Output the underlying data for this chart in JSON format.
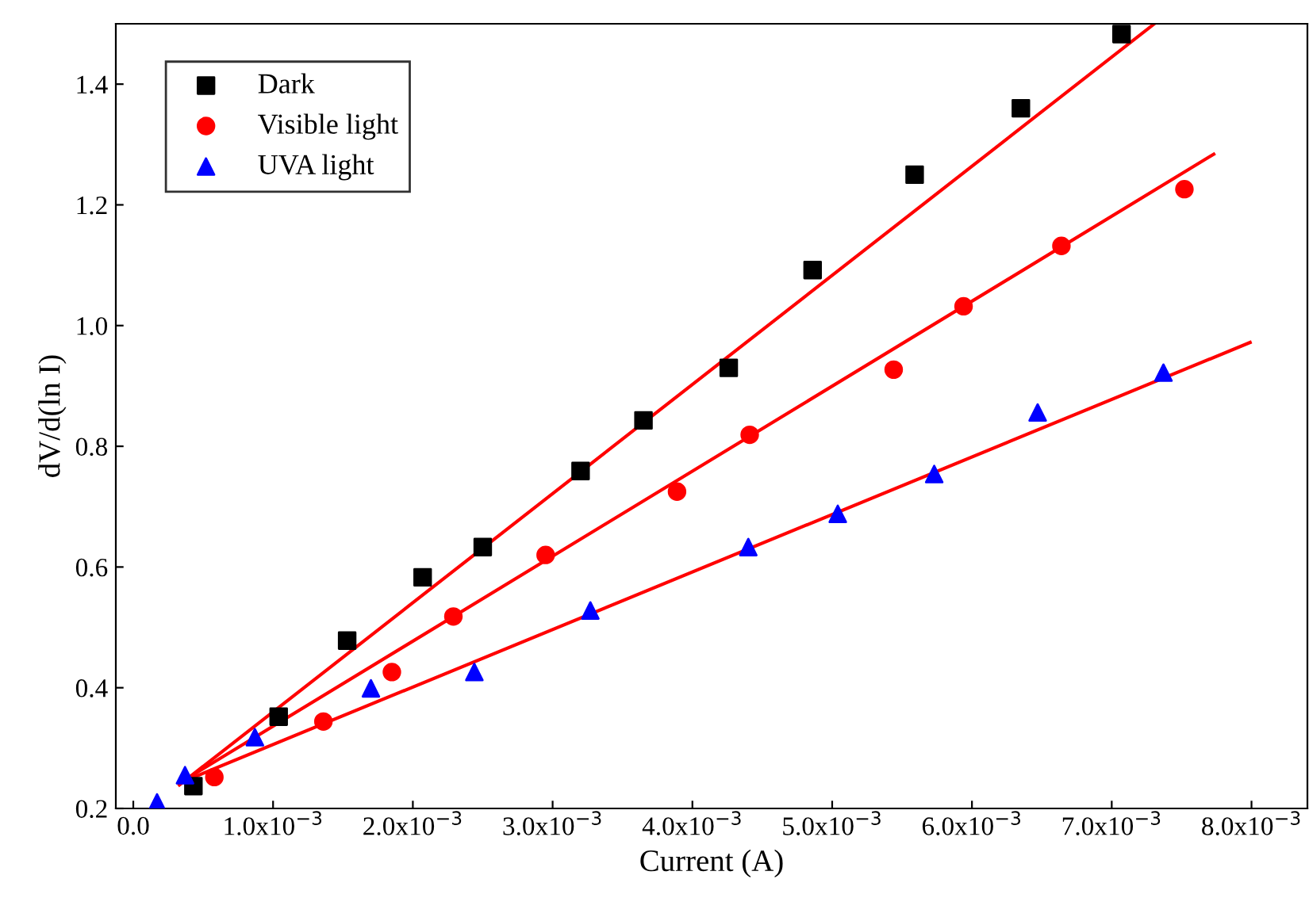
{
  "chart_data": {
    "type": "scatter",
    "xlabel": "Current (A)",
    "ylabel": "dV/d(ln I)",
    "xlim": [
      -0.000125,
      0.0084
    ],
    "ylim": [
      0.2,
      1.5
    ],
    "xticks": [
      {
        "value": 0,
        "label": "0.0"
      },
      {
        "value": 0.001,
        "label": "1.0x10$^{−3}$"
      },
      {
        "value": 0.002,
        "label": "2.0x10$^{−3}$"
      },
      {
        "value": 0.003,
        "label": "3.0x10$^{−3}$"
      },
      {
        "value": 0.004,
        "label": "4.0x10$^{−3}$"
      },
      {
        "value": 0.005,
        "label": "5.0x10$^{−3}$"
      },
      {
        "value": 0.006,
        "label": "6.0x10$^{−3}$"
      },
      {
        "value": 0.007,
        "label": "7.0x10$^{−3}$"
      },
      {
        "value": 0.008,
        "label": "8.0x10$^{−3}$"
      }
    ],
    "yticks": [
      {
        "value": 0.2,
        "label": "0.2"
      },
      {
        "value": 0.4,
        "label": "0.4"
      },
      {
        "value": 0.6,
        "label": "0.6"
      },
      {
        "value": 0.8,
        "label": "0.8"
      },
      {
        "value": 1.0,
        "label": "1.0"
      },
      {
        "value": 1.2,
        "label": "1.2"
      },
      {
        "value": 1.4,
        "label": "1.4"
      }
    ],
    "grid": false,
    "legend": "top left",
    "series": [
      {
        "name": "Dark",
        "marker": "square",
        "color": "#000000",
        "x": [
          0.00043,
          0.00104,
          0.00153,
          0.00207,
          0.0025,
          0.0032,
          0.00365,
          0.00426,
          0.00486,
          0.00559,
          0.00635,
          0.00707
        ],
        "values": [
          0.237,
          0.352,
          0.478,
          0.583,
          0.633,
          0.759,
          0.843,
          0.93,
          1.092,
          1.25,
          1.36,
          1.483
        ]
      },
      {
        "name": "Visible light",
        "marker": "circle",
        "color": "#ff0000",
        "x": [
          0.00058,
          0.00136,
          0.00185,
          0.00229,
          0.00295,
          0.00389,
          0.00441,
          0.00544,
          0.00594,
          0.00664,
          0.00752
        ],
        "values": [
          0.252,
          0.344,
          0.426,
          0.518,
          0.62,
          0.725,
          0.819,
          0.927,
          1.032,
          1.132,
          1.226
        ]
      },
      {
        "name": "UVA light",
        "marker": "triangle",
        "color": "#0000ff",
        "x": [
          0.00017,
          0.00037,
          0.00087,
          0.0017,
          0.00244,
          0.00327,
          0.0044,
          0.00504,
          0.00573,
          0.00647,
          0.00737
        ],
        "values": [
          0.21,
          0.255,
          0.318,
          0.399,
          0.426,
          0.528,
          0.633,
          0.688,
          0.754,
          0.856,
          0.922
        ]
      },
      {
        "type": "line",
        "color": "#ff0000",
        "x": [
          0.00033,
          0.0073
        ],
        "values": [
          0.239,
          1.499
        ]
      },
      {
        "type": "line",
        "color": "#ff0000",
        "x": [
          0.00033,
          0.00773
        ],
        "values": [
          0.242,
          1.284
        ]
      },
      {
        "type": "line",
        "color": "#ff0000",
        "x": [
          0.00033,
          0.00799
        ],
        "values": [
          0.242,
          0.972
        ]
      }
    ]
  }
}
